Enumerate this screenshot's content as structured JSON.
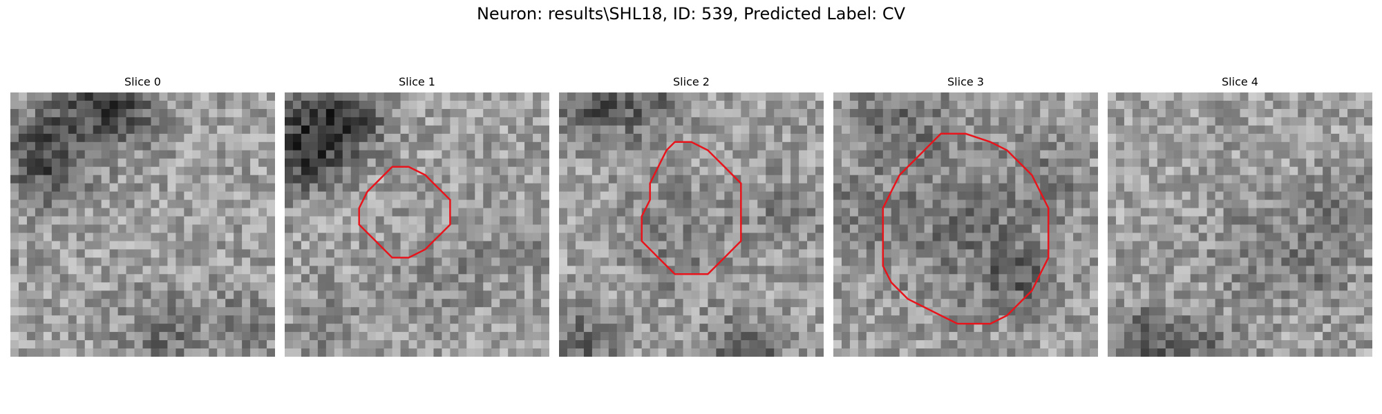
{
  "figure": {
    "title": "Neuron: results\\SHL18, ID: 539, Predicted Label: CV"
  },
  "contour_color": "#e8141c",
  "colormap": "grayscale",
  "panels": [
    {
      "title": "Slice 0",
      "has_contour": false
    },
    {
      "title": "Slice 1",
      "has_contour": true
    },
    {
      "title": "Slice 2",
      "has_contour": true
    },
    {
      "title": "Slice 3",
      "has_contour": true
    },
    {
      "title": "Slice 4",
      "has_contour": false
    }
  ]
}
